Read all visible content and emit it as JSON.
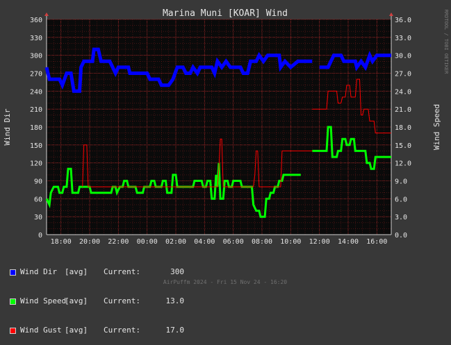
{
  "chart_data": {
    "type": "line",
    "title": "Marina Muni [KOAR] Wind",
    "ylabel_left": "Wind Dir",
    "ylabel_right": "Wind Speed",
    "ylim_left": [
      0,
      360
    ],
    "ylim_right": [
      0.0,
      36.0
    ],
    "yticks_left": [
      "0",
      "30",
      "60",
      "90",
      "120",
      "150",
      "180",
      "210",
      "240",
      "270",
      "300",
      "330",
      "360"
    ],
    "yticks_right": [
      "0.0",
      "3.0",
      "6.0",
      "9.0",
      "12.0",
      "15.0",
      "18.0",
      "21.0",
      "24.0",
      "27.0",
      "30.0",
      "33.0",
      "36.0"
    ],
    "xlim_hours": [
      17.0,
      41.0
    ],
    "xticks": [
      {
        "h": 18,
        "label": "18:00"
      },
      {
        "h": 20,
        "label": "20:00"
      },
      {
        "h": 22,
        "label": "22:00"
      },
      {
        "h": 24,
        "label": "00:00"
      },
      {
        "h": 26,
        "label": "02:00"
      },
      {
        "h": 28,
        "label": "04:00"
      },
      {
        "h": 30,
        "label": "06:00"
      },
      {
        "h": 32,
        "label": "08:00"
      },
      {
        "h": 34,
        "label": "10:00"
      },
      {
        "h": 36,
        "label": "12:00"
      },
      {
        "h": 38,
        "label": "14:00"
      },
      {
        "h": 40,
        "label": "16:00"
      }
    ],
    "grid": true,
    "series": [
      {
        "name": "Wind Dir",
        "axis": "left",
        "color": "#0000ff",
        "width": 5,
        "segments": [
          [
            [
              17.0,
              280
            ],
            [
              17.2,
              260
            ],
            [
              17.9,
              260
            ],
            [
              18.1,
              250
            ],
            [
              18.4,
              270
            ],
            [
              18.7,
              270
            ],
            [
              18.9,
              240
            ],
            [
              19.3,
              240
            ],
            [
              19.4,
              280
            ],
            [
              19.6,
              290
            ],
            [
              20.2,
              290
            ],
            [
              20.3,
              310
            ],
            [
              20.6,
              310
            ],
            [
              20.8,
              290
            ],
            [
              21.4,
              290
            ],
            [
              21.6,
              280
            ],
            [
              21.8,
              270
            ],
            [
              22.0,
              280
            ],
            [
              22.7,
              280
            ],
            [
              22.8,
              270
            ],
            [
              23.0,
              270
            ],
            [
              24.0,
              270
            ],
            [
              24.2,
              260
            ],
            [
              24.8,
              260
            ],
            [
              25.0,
              250
            ],
            [
              25.5,
              250
            ],
            [
              25.8,
              260
            ],
            [
              26.1,
              280
            ],
            [
              26.5,
              280
            ],
            [
              26.7,
              270
            ],
            [
              27.0,
              270
            ],
            [
              27.2,
              280
            ],
            [
              27.5,
              270
            ],
            [
              27.7,
              280
            ],
            [
              28.5,
              280
            ],
            [
              28.7,
              270
            ],
            [
              28.9,
              290
            ],
            [
              29.2,
              280
            ],
            [
              29.5,
              290
            ],
            [
              29.8,
              280
            ],
            [
              30.5,
              280
            ],
            [
              30.7,
              270
            ],
            [
              31.0,
              270
            ],
            [
              31.2,
              290
            ],
            [
              31.6,
              290
            ],
            [
              31.8,
              300
            ],
            [
              32.1,
              290
            ],
            [
              32.4,
              300
            ],
            [
              33.2,
              300
            ],
            [
              33.3,
              280
            ],
            [
              33.6,
              290
            ],
            [
              34.0,
              280
            ],
            [
              34.5,
              290
            ],
            [
              35.5,
              290
            ]
          ],
          [
            [
              36.0,
              280
            ],
            [
              36.6,
              280
            ],
            [
              36.8,
              290
            ],
            [
              37.0,
              300
            ],
            [
              37.5,
              300
            ],
            [
              37.7,
              290
            ],
            [
              38.5,
              290
            ],
            [
              38.6,
              280
            ],
            [
              38.9,
              290
            ],
            [
              39.2,
              280
            ],
            [
              39.5,
              300
            ],
            [
              39.7,
              290
            ],
            [
              40.0,
              300
            ],
            [
              41.0,
              300
            ]
          ]
        ]
      },
      {
        "name": "Wind Speed",
        "axis": "right",
        "color": "#00ff00",
        "width": 3,
        "segments": [
          [
            [
              17.0,
              6.0
            ],
            [
              17.2,
              5.0
            ],
            [
              17.3,
              7.0
            ],
            [
              17.5,
              8.0
            ],
            [
              17.8,
              8.0
            ],
            [
              17.9,
              7.0
            ],
            [
              18.1,
              7.0
            ],
            [
              18.2,
              8.0
            ],
            [
              18.4,
              8.0
            ],
            [
              18.5,
              11.0
            ],
            [
              18.7,
              11.0
            ],
            [
              18.8,
              7.0
            ],
            [
              19.2,
              7.0
            ],
            [
              19.3,
              8.0
            ],
            [
              20.0,
              8.0
            ],
            [
              20.1,
              7.0
            ],
            [
              21.5,
              7.0
            ],
            [
              21.6,
              8.0
            ],
            [
              21.8,
              8.0
            ],
            [
              21.9,
              7.0
            ],
            [
              22.1,
              8.0
            ],
            [
              22.3,
              8.0
            ],
            [
              22.4,
              9.0
            ],
            [
              22.6,
              9.0
            ],
            [
              22.7,
              8.0
            ],
            [
              23.2,
              8.0
            ],
            [
              23.3,
              7.0
            ],
            [
              23.7,
              7.0
            ],
            [
              23.8,
              8.0
            ],
            [
              24.2,
              8.0
            ],
            [
              24.3,
              9.0
            ],
            [
              24.5,
              9.0
            ],
            [
              24.6,
              8.0
            ],
            [
              25.0,
              8.0
            ],
            [
              25.1,
              9.0
            ],
            [
              25.3,
              9.0
            ],
            [
              25.4,
              7.0
            ],
            [
              25.7,
              7.0
            ],
            [
              25.8,
              10.0
            ],
            [
              26.0,
              10.0
            ],
            [
              26.1,
              8.0
            ],
            [
              27.2,
              8.0
            ],
            [
              27.3,
              9.0
            ],
            [
              27.8,
              9.0
            ],
            [
              27.9,
              8.0
            ],
            [
              28.1,
              8.0
            ],
            [
              28.2,
              9.0
            ],
            [
              28.4,
              9.0
            ],
            [
              28.5,
              6.0
            ],
            [
              28.7,
              6.0
            ],
            [
              28.8,
              10.0
            ],
            [
              28.9,
              8.0
            ],
            [
              29.0,
              12.0
            ],
            [
              29.1,
              6.0
            ],
            [
              29.3,
              6.0
            ],
            [
              29.4,
              9.0
            ],
            [
              29.6,
              9.0
            ],
            [
              29.7,
              8.0
            ],
            [
              29.9,
              8.0
            ],
            [
              30.0,
              9.0
            ],
            [
              30.5,
              9.0
            ],
            [
              30.6,
              8.0
            ],
            [
              31.3,
              8.0
            ],
            [
              31.4,
              5.0
            ],
            [
              31.6,
              4.0
            ],
            [
              31.8,
              4.0
            ],
            [
              31.9,
              3.0
            ],
            [
              32.2,
              3.0
            ],
            [
              32.3,
              6.0
            ],
            [
              32.5,
              6.0
            ],
            [
              32.6,
              7.0
            ],
            [
              32.8,
              7.0
            ],
            [
              32.9,
              8.0
            ],
            [
              33.1,
              8.0
            ],
            [
              33.2,
              9.0
            ],
            [
              33.4,
              9.0
            ],
            [
              33.5,
              10.0
            ],
            [
              34.7,
              10.0
            ]
          ],
          [
            [
              35.5,
              14.0
            ],
            [
              36.5,
              14.0
            ],
            [
              36.6,
              18.0
            ],
            [
              36.8,
              18.0
            ],
            [
              36.9,
              13.0
            ],
            [
              37.2,
              13.0
            ],
            [
              37.3,
              14.0
            ],
            [
              37.5,
              14.0
            ],
            [
              37.6,
              16.0
            ],
            [
              37.8,
              16.0
            ],
            [
              37.9,
              15.0
            ],
            [
              38.1,
              15.0
            ],
            [
              38.2,
              16.0
            ],
            [
              38.4,
              16.0
            ],
            [
              38.5,
              14.0
            ],
            [
              39.2,
              14.0
            ],
            [
              39.3,
              12.0
            ],
            [
              39.5,
              12.0
            ],
            [
              39.6,
              11.0
            ],
            [
              39.8,
              11.0
            ],
            [
              39.9,
              13.0
            ],
            [
              41.0,
              13.0
            ]
          ]
        ]
      },
      {
        "name": "Wind Gust",
        "axis": "right",
        "color": "#ff0000",
        "width": 1,
        "segments": [
          [
            [
              19.5,
              8.0
            ],
            [
              19.6,
              15.0
            ],
            [
              19.8,
              15.0
            ],
            [
              19.9,
              8.0
            ],
            [
              28.9,
              8.0
            ],
            [
              29.0,
              11.0
            ],
            [
              29.1,
              16.0
            ],
            [
              29.2,
              16.0
            ],
            [
              29.3,
              8.0
            ],
            [
              31.4,
              8.0
            ],
            [
              31.5,
              10.0
            ],
            [
              31.6,
              14.0
            ],
            [
              31.7,
              14.0
            ],
            [
              31.8,
              8.0
            ],
            [
              33.3,
              8.0
            ],
            [
              33.4,
              14.0
            ],
            [
              35.5,
              14.0
            ]
          ],
          [
            [
              35.5,
              21.0
            ],
            [
              36.5,
              21.0
            ],
            [
              36.6,
              24.0
            ],
            [
              37.2,
              24.0
            ],
            [
              37.3,
              22.0
            ],
            [
              37.5,
              22.0
            ],
            [
              37.6,
              23.0
            ],
            [
              37.8,
              23.0
            ],
            [
              37.9,
              25.0
            ],
            [
              38.1,
              25.0
            ],
            [
              38.2,
              23.0
            ],
            [
              38.5,
              23.0
            ],
            [
              38.6,
              26.0
            ],
            [
              38.8,
              26.0
            ],
            [
              38.9,
              20.0
            ],
            [
              39.0,
              20.0
            ],
            [
              39.1,
              21.0
            ],
            [
              39.4,
              21.0
            ],
            [
              39.5,
              19.0
            ],
            [
              39.8,
              19.0
            ],
            [
              39.9,
              17.0
            ],
            [
              41.0,
              17.0
            ]
          ]
        ]
      }
    ]
  },
  "legend": [
    {
      "color": "#0000ff",
      "name": "Wind Dir",
      "agg": "[avg]",
      "current_label": "Current:",
      "current": "300"
    },
    {
      "color": "#00ff00",
      "name": "Wind Speed",
      "agg": "[avg]",
      "current_label": "Current:",
      "current": "13.0"
    },
    {
      "color": "#ff0000",
      "name": "Wind Gust",
      "agg": "[avg]",
      "current_label": "Current:",
      "current": "17.0"
    }
  ],
  "watermark": "RRDTOOL / TOBI OETIKER",
  "footer": "AirPuffm 2024 - Fri 15 Nov 24 - 16:20"
}
